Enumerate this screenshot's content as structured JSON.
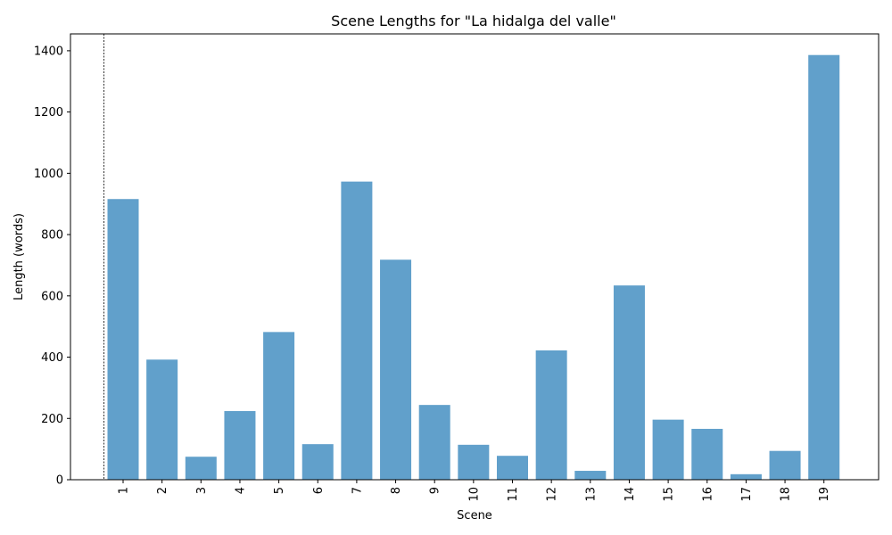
{
  "chart_data": {
    "type": "bar",
    "title": "Scene Lengths for \"La hidalga del valle\"",
    "xlabel": "Scene",
    "ylabel": "Length (words)",
    "categories": [
      "1",
      "2",
      "3",
      "4",
      "5",
      "6",
      "7",
      "8",
      "9",
      "10",
      "11",
      "12",
      "13",
      "14",
      "15",
      "16",
      "17",
      "18",
      "19"
    ],
    "values": [
      916,
      392,
      75,
      224,
      482,
      116,
      973,
      718,
      244,
      114,
      78,
      422,
      29,
      634,
      196,
      166,
      18,
      94,
      1386
    ],
    "ylim": [
      0,
      1455
    ],
    "yticks": [
      0,
      200,
      400,
      600,
      800,
      1000,
      1200,
      1400
    ],
    "grid": false,
    "legend": "none",
    "bar_color": "#61a0cb",
    "reference_line_style": "dashed vertical line before scene 1"
  }
}
